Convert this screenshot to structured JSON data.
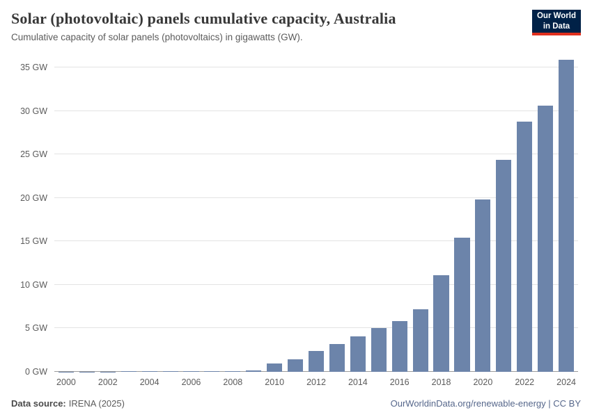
{
  "header": {
    "title": "Solar (photovoltaic) panels cumulative capacity, Australia",
    "subtitle": "Cumulative capacity of solar panels (photovoltaics) in gigawatts (GW).",
    "logo": {
      "line1": "Our World",
      "line2": "in Data"
    }
  },
  "chart_data": {
    "type": "bar",
    "title": "Solar (photovoltaic) panels cumulative capacity, Australia",
    "xlabel": "",
    "ylabel": "",
    "unit": "GW",
    "ylim": [
      0,
      36.6
    ],
    "yticks": [
      0,
      5,
      10,
      15,
      20,
      25,
      30,
      35
    ],
    "grid": true,
    "legend": "none",
    "bar_color": "#6c84aa",
    "categories": [
      2000,
      2001,
      2002,
      2003,
      2004,
      2005,
      2006,
      2007,
      2008,
      2009,
      2010,
      2011,
      2012,
      2013,
      2014,
      2015,
      2016,
      2017,
      2018,
      2019,
      2020,
      2021,
      2022,
      2023,
      2024
    ],
    "values": [
      0.03,
      0.04,
      0.04,
      0.05,
      0.06,
      0.06,
      0.07,
      0.08,
      0.1,
      0.19,
      1.0,
      1.4,
      2.4,
      3.2,
      4.1,
      5.0,
      5.8,
      7.2,
      11.1,
      15.4,
      19.8,
      24.4,
      28.8,
      30.6,
      35.9
    ],
    "x_tick_labels": [
      "2000",
      "2002",
      "2004",
      "2006",
      "2008",
      "2010",
      "2012",
      "2014",
      "2016",
      "2018",
      "2020",
      "2022",
      "2024"
    ]
  },
  "footer": {
    "source_label": "Data source:",
    "source_value": "IRENA (2025)",
    "right_text": "OurWorldinData.org/renewable-energy | CC BY"
  }
}
